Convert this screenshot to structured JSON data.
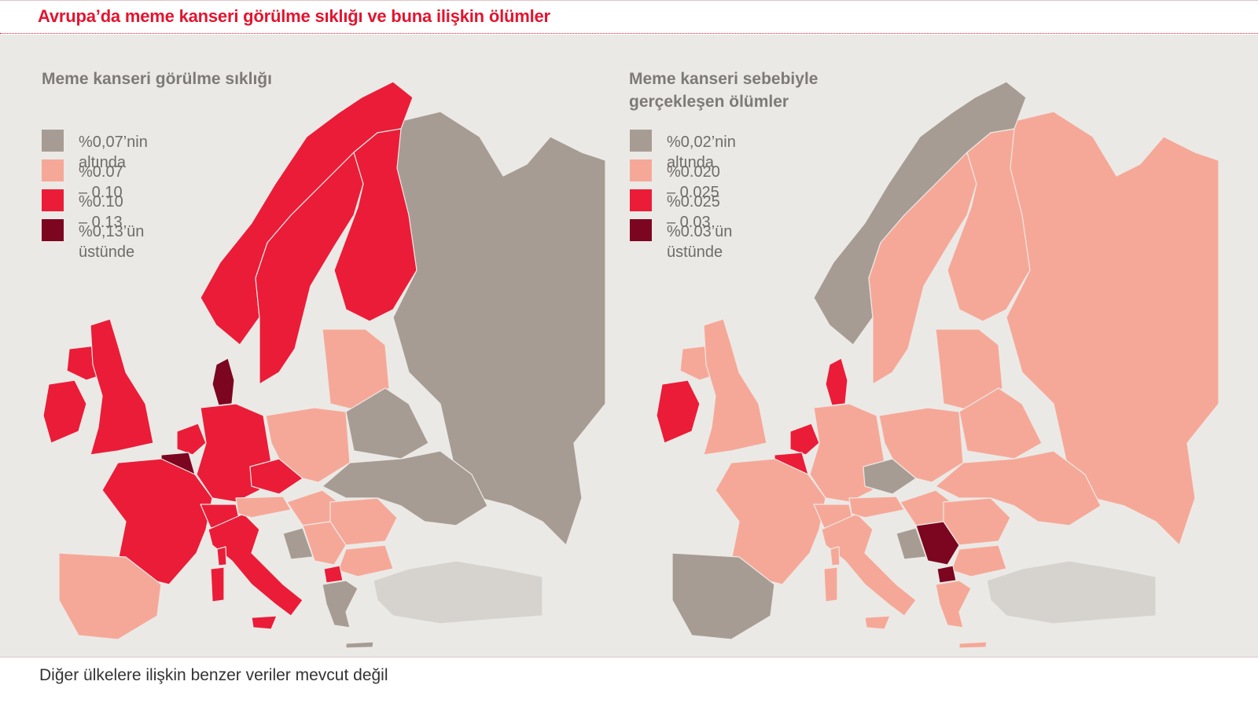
{
  "title": "Avrupa’da meme kanseri görülme sıklığı ve buna ilişkin ölümler",
  "footnote": "Diğer ülkelere ilişkin benzer veriler mevcut değil",
  "colors": {
    "grey": "#a79c93",
    "light": "#f6a898",
    "red": "#eb1c38",
    "dark": "#7c0520",
    "no_data": "#d6d3cf",
    "sea": "#ebe9e5"
  },
  "maps": [
    {
      "heading": "Meme kanseri görülme sıklığı",
      "legend": [
        {
          "label": "%0,07’nin altında",
          "color": "#a79c93"
        },
        {
          "label": "%0.07 – 0.10",
          "color": "#f6a898"
        },
        {
          "label": "%0.10 – 0.13",
          "color": "#eb1c38"
        },
        {
          "label": "%0,13’ün\nüstünde",
          "color": "#7c0520"
        }
      ],
      "countries": {
        "iceland": "#eb1c38",
        "ireland": "#eb1c38",
        "uk": "#eb1c38",
        "norway": "#eb1c38",
        "sweden": "#eb1c38",
        "finland": "#eb1c38",
        "denmark": "#7c0520",
        "netherlands": "#eb1c38",
        "belgium": "#7c0520",
        "france": "#eb1c38",
        "germany": "#eb1c38",
        "switzerland": "#eb1c38",
        "italy": "#eb1c38",
        "czechia": "#eb1c38",
        "spain": "#f6a898",
        "poland": "#f6a898",
        "baltics": "#f6a898",
        "austria": "#f6a898",
        "hungary": "#f6a898",
        "romania": "#f6a898",
        "bulgaria": "#f6a898",
        "serbia": "#f6a898",
        "north_macedonia": "#eb1c38",
        "bosnia": "#a79c93",
        "greece": "#a79c93",
        "belarus": "#a79c93",
        "ukraine": "#a79c93",
        "russia": "#a79c93",
        "turkey": "#d6d3cf"
      }
    },
    {
      "heading": "Meme kanseri sebebiyle\ngerçekleşen ölümler",
      "legend": [
        {
          "label": "%0,02’nin altında",
          "color": "#a79c93"
        },
        {
          "label": "%0.020 – 0.025",
          "color": "#f6a898"
        },
        {
          "label": "%0.025 – 0.03",
          "color": "#eb1c38"
        },
        {
          "label": "%0.03’ün\nüstünde",
          "color": "#7c0520"
        }
      ],
      "countries": {
        "iceland": "#f6a898",
        "ireland": "#eb1c38",
        "uk": "#f6a898",
        "norway": "#a79c93",
        "sweden": "#f6a898",
        "finland": "#f6a898",
        "denmark": "#eb1c38",
        "netherlands": "#eb1c38",
        "belgium": "#eb1c38",
        "france": "#f6a898",
        "germany": "#f6a898",
        "switzerland": "#f6a898",
        "italy": "#f6a898",
        "czechia": "#a79c93",
        "spain": "#a79c93",
        "poland": "#f6a898",
        "baltics": "#f6a898",
        "austria": "#f6a898",
        "hungary": "#f6a898",
        "romania": "#f6a898",
        "bulgaria": "#f6a898",
        "serbia": "#7c0520",
        "north_macedonia": "#7c0520",
        "bosnia": "#a79c93",
        "greece": "#f6a898",
        "belarus": "#f6a898",
        "ukraine": "#f6a898",
        "russia": "#f6a898",
        "turkey": "#d6d3cf"
      }
    }
  ]
}
